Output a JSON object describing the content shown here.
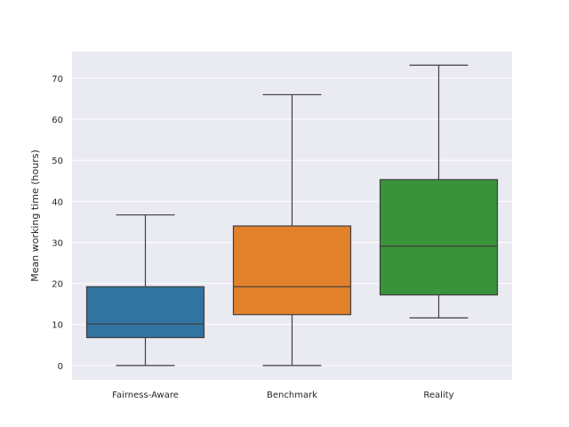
{
  "chart_data": {
    "type": "box",
    "title": "",
    "xlabel": "",
    "ylabel": "Mean working time (hours)",
    "ylim": [
      -3.5,
      76.5
    ],
    "yticks": [
      0,
      10,
      20,
      30,
      40,
      50,
      60,
      70
    ],
    "grid": true,
    "legend": "none",
    "categories": [
      "Fairness-Aware",
      "Benchmark",
      "Reality"
    ],
    "boxes": [
      {
        "category": "Fairness-Aware",
        "whisker_low": 0,
        "q1": 6.8,
        "median": 10.1,
        "q3": 19.2,
        "whisker_high": 36.7,
        "color": "#3274a1"
      },
      {
        "category": "Benchmark",
        "whisker_low": 0,
        "q1": 12.4,
        "median": 19.2,
        "q3": 34.0,
        "whisker_high": 66.0,
        "color": "#e1812c"
      },
      {
        "category": "Reality",
        "whisker_low": 11.6,
        "q1": 17.2,
        "median": 29.1,
        "q3": 45.3,
        "whisker_high": 73.2,
        "color": "#3a923a"
      }
    ],
    "colors": {
      "plot_background": "#eaeaf2",
      "grid": "#ffffff",
      "line": "#3f3f3f"
    }
  }
}
